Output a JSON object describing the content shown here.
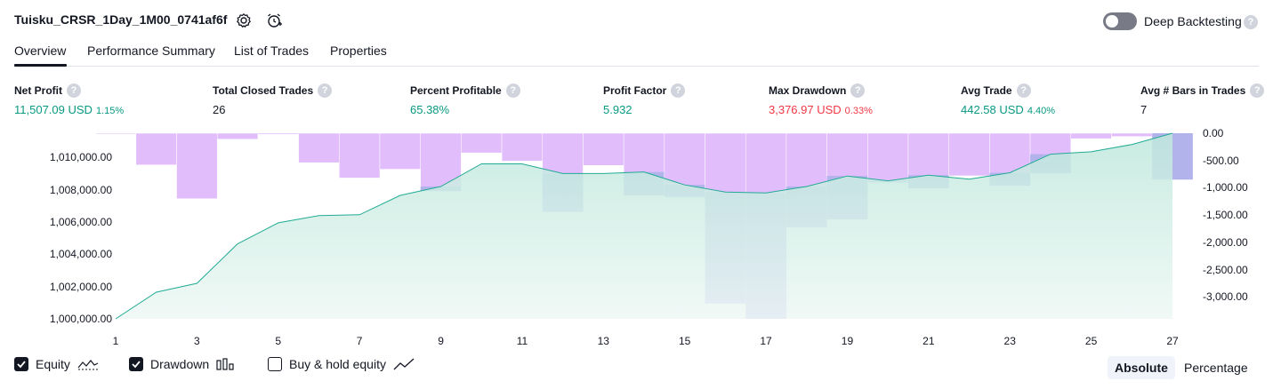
{
  "header": {
    "title": "Tuisku_CRSR_1Day_1M00_0741af6f",
    "settings_icon": "gear-icon",
    "add_alert_icon": "alarm-plus-icon",
    "deep_backtesting_label": "Deep Backtesting",
    "help_icon": "question-icon",
    "help_glyph": "?"
  },
  "tabs": [
    {
      "label": "Overview"
    },
    {
      "label": "Performance Summary"
    },
    {
      "label": "List of Trades"
    },
    {
      "label": "Properties"
    }
  ],
  "metrics": [
    {
      "label": "Net Profit",
      "value": "11,507.09 USD",
      "pct": "1.15%",
      "tone": "pos"
    },
    {
      "label": "Total Closed Trades",
      "value": "26",
      "pct": "",
      "tone": ""
    },
    {
      "label": "Percent Profitable",
      "value": "65.38%",
      "pct": "",
      "tone": "pos"
    },
    {
      "label": "Profit Factor",
      "value": "5.932",
      "pct": "",
      "tone": "pos"
    },
    {
      "label": "Max Drawdown",
      "value": "3,376.97 USD",
      "pct": "0.33%",
      "tone": "neg"
    },
    {
      "label": "Avg Trade",
      "value": "442.58 USD",
      "pct": "4.40%",
      "tone": "pos"
    },
    {
      "label": "Avg # Bars in Trades",
      "value": "7",
      "pct": "",
      "tone": ""
    }
  ],
  "colors": {
    "positive": "#089981",
    "negative": "#f23645",
    "equity_line": "#22ab94",
    "equity_fill_top": "#bfe8dc",
    "equity_fill_bottom": "#eef8f5",
    "drawdown_bar": "#e1bdfc",
    "drawdown_overlap": "#b3b3ec"
  },
  "chart_data": {
    "type": "line",
    "x": [
      1,
      2,
      3,
      4,
      5,
      6,
      7,
      8,
      9,
      10,
      11,
      12,
      13,
      14,
      15,
      16,
      17,
      18,
      19,
      20,
      21,
      22,
      23,
      24,
      25,
      26,
      27
    ],
    "x_tick_labels": [
      "1",
      "3",
      "5",
      "7",
      "9",
      "11",
      "13",
      "15",
      "17",
      "19",
      "21",
      "23",
      "25",
      "27"
    ],
    "series": [
      {
        "name": "Equity",
        "axis": "left",
        "values": [
          1000000,
          1001650,
          1002200,
          1004650,
          1005950,
          1006400,
          1006450,
          1007650,
          1008200,
          1009600,
          1009600,
          1009000,
          1009000,
          1009100,
          1008300,
          1007850,
          1007800,
          1008200,
          1008850,
          1008550,
          1008900,
          1008650,
          1009050,
          1010200,
          1010350,
          1010800,
          1011500
        ]
      },
      {
        "name": "Drawdown",
        "axis": "right",
        "type": "bar",
        "values": [
          -10,
          -580,
          -1200,
          -110,
          -20,
          -540,
          -820,
          -660,
          -1060,
          -360,
          -510,
          -1440,
          -590,
          -1140,
          -1170,
          -3120,
          -3400,
          -1720,
          -1580,
          -900,
          -1010,
          -780,
          -960,
          -730,
          -100,
          -60,
          -850
        ]
      }
    ],
    "y_left": {
      "ticks": [
        "1,000,000.00",
        "1,002,000.00",
        "1,004,000.00",
        "1,006,000.00",
        "1,008,000.00",
        "1,010,000.00"
      ],
      "range": [
        1000000,
        1011500
      ]
    },
    "y_right": {
      "ticks": [
        "0.00",
        "-500.00",
        "-1,000.00",
        "-1,500.00",
        "-2,000.00",
        "-2,500.00",
        "-3,000.00"
      ],
      "range": [
        -3400,
        0
      ]
    },
    "grid": false
  },
  "legend": {
    "equity": {
      "label": "Equity",
      "checked": true,
      "icon": "equity-line-icon"
    },
    "drawdown": {
      "label": "Drawdown",
      "checked": true,
      "icon": "bars-icon"
    },
    "buy_hold": {
      "label": "Buy & hold equity",
      "checked": false,
      "icon": "trend-line-icon"
    }
  },
  "view_toggle": {
    "absolute": "Absolute",
    "percentage": "Percentage",
    "selected": "Absolute"
  }
}
